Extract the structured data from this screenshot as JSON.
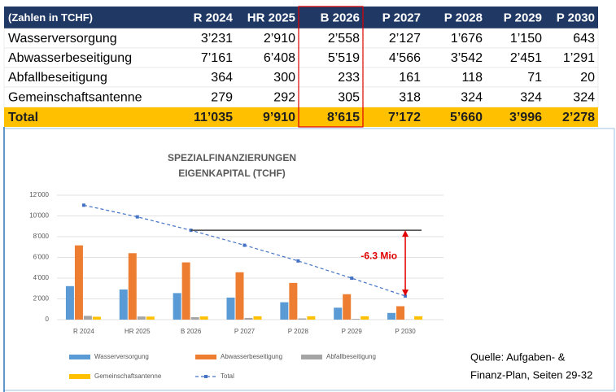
{
  "table": {
    "header": [
      "(Zahlen in TCHF)",
      "R  2024",
      "HR 2025",
      "B 2026",
      "P 2027",
      "P 2028",
      "P 2029",
      "P 2030"
    ],
    "rows": [
      [
        "Wasserversorgung",
        "3’231",
        "2’910",
        "2’558",
        "2’127",
        "1’676",
        "1’150",
        "643"
      ],
      [
        "Abwasserbeseitigung",
        "7’161",
        "6’408",
        "5’519",
        "4’566",
        "3’542",
        "2’451",
        "1’291"
      ],
      [
        "Abfallbeseitigung",
        "364",
        "300",
        "233",
        "161",
        "118",
        "71",
        "20"
      ],
      [
        "Gemeinschaftsantenne",
        "279",
        "292",
        "305",
        "318",
        "324",
        "324",
        "324"
      ],
      [
        "Total",
        "11’035",
        "9’910",
        "8’615",
        "7’172",
        "5’660",
        "3’996",
        "2’278"
      ]
    ]
  },
  "chart_data": {
    "type": "bar",
    "title": [
      "SPEZIALFINANZIERUNGEN",
      "EIGENKAPITAL (TCHF)"
    ],
    "categories": [
      "R  2024",
      "HR 2025",
      "B 2026",
      "P 2027",
      "P 2028",
      "P 2029",
      "P 2030"
    ],
    "series": [
      {
        "name": "Wasserversorgung",
        "color": "#5b9bd5",
        "values": [
          3231,
          2910,
          2558,
          2127,
          1676,
          1150,
          643
        ]
      },
      {
        "name": "Abwasserbeseitigung",
        "color": "#ed7d31",
        "values": [
          7161,
          6408,
          5519,
          4566,
          3542,
          2451,
          1291
        ]
      },
      {
        "name": "Abfallbeseitigung",
        "color": "#a5a5a5",
        "values": [
          364,
          300,
          233,
          161,
          118,
          71,
          20
        ]
      },
      {
        "name": "Gemeinschaftsantenne",
        "color": "#ffc000",
        "values": [
          279,
          292,
          305,
          318,
          324,
          324,
          324
        ]
      },
      {
        "name": "Total",
        "color": "#4472c4",
        "type": "line",
        "values": [
          11035,
          9910,
          8615,
          7172,
          5660,
          3996,
          2278
        ]
      }
    ],
    "ylim": [
      0,
      12000
    ],
    "yticks": [
      0,
      {
        "value": 2000,
        "label": "2'000"
      },
      {
        "value": 4000,
        "label": "4'000"
      },
      {
        "value": 6000,
        "label": "6'000"
      },
      {
        "value": 8000,
        "label": "8'000"
      },
      {
        "value": 10000,
        "label": "10'000"
      },
      {
        "value": 12000,
        "label": "12'000"
      }
    ],
    "grid": true,
    "annotation": "-6.3 Mio"
  },
  "source": [
    "Quelle: Aufgaben- &",
    "Finanz-Plan, Seiten 29-32"
  ]
}
